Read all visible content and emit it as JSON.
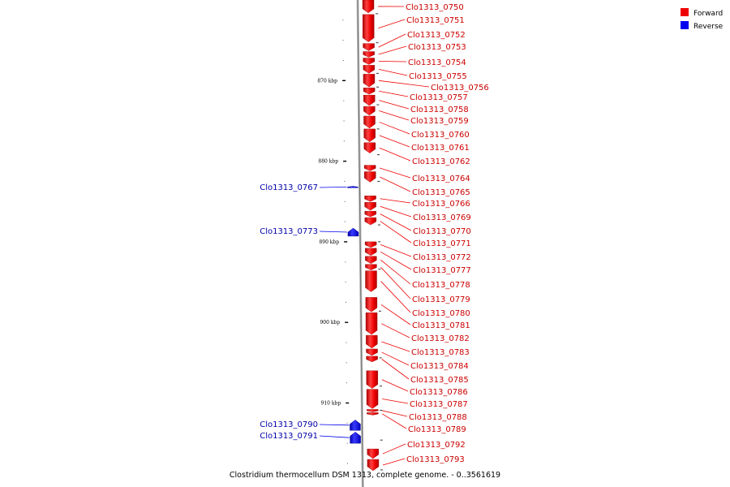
{
  "caption": "Clostridium thermocellum DSM 1313, complete genome. - 0..3561619",
  "legend": {
    "forward": {
      "label": "Forward",
      "color": "#ee0000"
    },
    "reverse": {
      "label": "Reverse",
      "color": "#0000ee"
    }
  },
  "colors": {
    "forward": "#ee0000",
    "forward_dark": "#aa0000",
    "reverse": "#0000ee",
    "backbone": "#888888"
  },
  "scale": {
    "start_kbp": 860,
    "end_kbp": 920
  },
  "ticks": [
    "870 kbp",
    "880 kbp",
    "890 kbp",
    "900 kbp",
    "910 kbp"
  ],
  "tick_values_kbp": [
    870,
    880,
    890,
    900,
    910
  ],
  "forward_genes": [
    {
      "name": "Clo1313_0750",
      "start": 860.0,
      "end": 861.6
    },
    {
      "name": "Clo1313_0751",
      "start": 861.8,
      "end": 865.2
    },
    {
      "name": "Clo1313_0752",
      "start": 865.4,
      "end": 866.3
    },
    {
      "name": "Clo1313_0753",
      "start": 866.4,
      "end": 867.1
    },
    {
      "name": "Clo1313_0754",
      "start": 867.2,
      "end": 868.0
    },
    {
      "name": "Clo1313_0755",
      "start": 868.1,
      "end": 869.1
    },
    {
      "name": "Clo1313_0756",
      "start": 869.2,
      "end": 870.8
    },
    {
      "name": "Clo1313_0757",
      "start": 870.9,
      "end": 871.7
    },
    {
      "name": "Clo1313_0758",
      "start": 871.8,
      "end": 873.1
    },
    {
      "name": "Clo1313_0759",
      "start": 873.2,
      "end": 874.3
    },
    {
      "name": "Clo1313_0760",
      "start": 874.4,
      "end": 875.9
    },
    {
      "name": "Clo1313_0761",
      "start": 876.0,
      "end": 877.6
    },
    {
      "name": "Clo1313_0762",
      "start": 877.7,
      "end": 879.0
    },
    {
      "name": "Clo1313_0764",
      "start": 880.5,
      "end": 881.2
    },
    {
      "name": "Clo1313_0765",
      "start": 881.3,
      "end": 882.6
    },
    {
      "name": "Clo1313_0766",
      "start": 884.3,
      "end": 885.0
    },
    {
      "name": "Clo1313_0769",
      "start": 885.1,
      "end": 886.1
    },
    {
      "name": "Clo1313_0770",
      "start": 886.2,
      "end": 886.9
    },
    {
      "name": "Clo1313_0771",
      "start": 887.0,
      "end": 887.9
    },
    {
      "name": "Clo1313_0772",
      "start": 890.0,
      "end": 890.7
    },
    {
      "name": "Clo1313_0777",
      "start": 890.8,
      "end": 891.7
    },
    {
      "name": "Clo1313_0778",
      "start": 891.8,
      "end": 892.7
    },
    {
      "name": "Clo1313_0779",
      "start": 892.8,
      "end": 893.5
    },
    {
      "name": "Clo1313_0780",
      "start": 893.6,
      "end": 896.2
    },
    {
      "name": "Clo1313_0781",
      "start": 896.9,
      "end": 898.7
    },
    {
      "name": "Clo1313_0782",
      "start": 898.8,
      "end": 901.5
    },
    {
      "name": "Clo1313_0783",
      "start": 901.6,
      "end": 903.2
    },
    {
      "name": "Clo1313_0784",
      "start": 903.3,
      "end": 904.1
    },
    {
      "name": "Clo1313_0785",
      "start": 904.2,
      "end": 904.9
    },
    {
      "name": "Clo1313_0786",
      "start": 906.0,
      "end": 908.2
    },
    {
      "name": "Clo1313_0787",
      "start": 908.3,
      "end": 910.7
    },
    {
      "name": "Clo1313_0788",
      "start": 910.8,
      "end": 911.1
    },
    {
      "name": "Clo1313_0789",
      "start": 911.2,
      "end": 911.5
    },
    {
      "name": "Clo1313_0792",
      "start": 915.7,
      "end": 916.9
    },
    {
      "name": "Clo1313_0793",
      "start": 917.0,
      "end": 918.4
    }
  ],
  "reverse_genes": [
    {
      "name": "Clo1313_0767",
      "start": 883.1,
      "end": 883.3
    },
    {
      "name": "Clo1313_0773",
      "start": 888.3,
      "end": 889.3
    },
    {
      "name": "Clo1313_0790",
      "start": 912.1,
      "end": 913.4
    },
    {
      "name": "Clo1313_0791",
      "start": 913.6,
      "end": 915.0
    }
  ]
}
